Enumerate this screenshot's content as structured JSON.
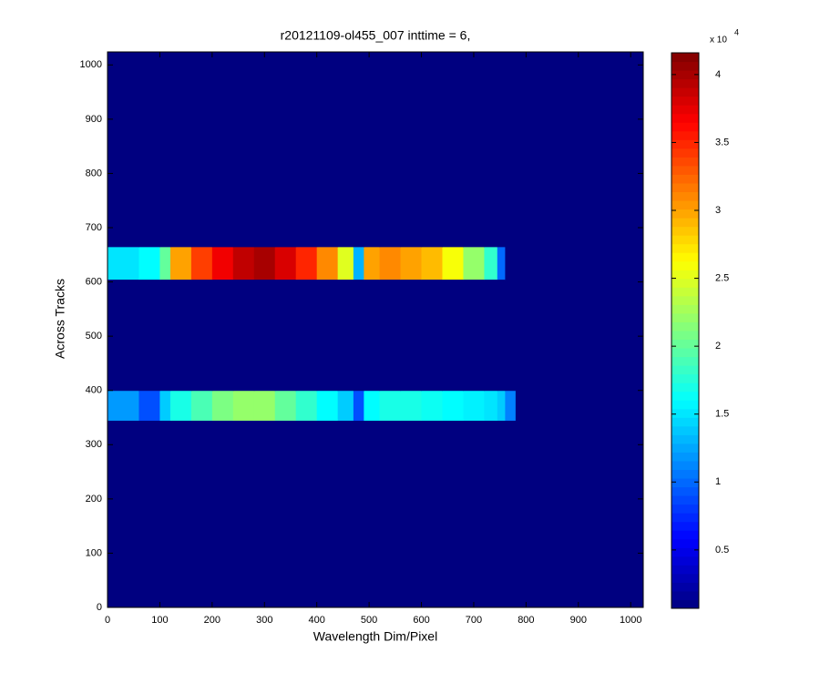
{
  "chart_data": {
    "type": "heatmap",
    "title": "r20121109-ol455_007 inttime = 6,",
    "xlabel": "Wavelength Dim/Pixel",
    "ylabel": "Across Tracks",
    "xlim": [
      0,
      1024
    ],
    "ylim": [
      0,
      1024
    ],
    "xticks": [
      0,
      100,
      200,
      300,
      400,
      500,
      600,
      700,
      800,
      900,
      1000
    ],
    "yticks": [
      0,
      100,
      200,
      300,
      400,
      500,
      600,
      700,
      800,
      900,
      1000
    ],
    "x_edges": [
      0,
      60,
      100,
      120,
      160,
      200,
      240,
      280,
      320,
      360,
      400,
      440,
      470,
      490,
      520,
      560,
      600,
      640,
      680,
      720,
      745,
      760,
      780,
      1024
    ],
    "y_edges": [
      0,
      345,
      400,
      605,
      665,
      1024
    ],
    "values": [
      [
        700,
        700,
        700,
        700,
        700,
        700,
        700,
        700,
        700,
        700,
        700,
        700,
        700,
        700,
        700,
        700,
        700,
        700,
        700,
        700,
        700,
        700,
        700
      ],
      [
        12000,
        9000,
        14000,
        17000,
        19000,
        21000,
        22000,
        22000,
        20000,
        18000,
        16000,
        14000,
        9000,
        16000,
        17000,
        17000,
        16500,
        16000,
        15500,
        15000,
        14000,
        11000,
        700
      ],
      [
        700,
        700,
        700,
        700,
        700,
        700,
        700,
        700,
        700,
        700,
        700,
        700,
        700,
        700,
        700,
        700,
        700,
        700,
        700,
        700,
        700,
        700,
        700
      ],
      [
        15000,
        16000,
        20000,
        30000,
        34000,
        37000,
        39000,
        40000,
        38000,
        35000,
        31000,
        25000,
        13000,
        30000,
        31000,
        30000,
        29000,
        26000,
        22000,
        18000,
        10000,
        700,
        700
      ],
      [
        700,
        700,
        700,
        700,
        700,
        700,
        700,
        700,
        700,
        700,
        700,
        700,
        700,
        700,
        700,
        700,
        700,
        700,
        700,
        700,
        700,
        700,
        700
      ]
    ],
    "colormap": "jet",
    "clim": [
      700,
      41600
    ],
    "cticks": [
      {
        "value": 5000,
        "label": "0.5"
      },
      {
        "value": 10000,
        "label": "1"
      },
      {
        "value": 15000,
        "label": "1.5"
      },
      {
        "value": 20000,
        "label": "2"
      },
      {
        "value": 25000,
        "label": "2.5"
      },
      {
        "value": 30000,
        "label": "3"
      },
      {
        "value": 35000,
        "label": "3.5"
      },
      {
        "value": 40000,
        "label": "4"
      }
    ],
    "colorbar_multiplier": "x 10",
    "colorbar_exponent": "4"
  }
}
